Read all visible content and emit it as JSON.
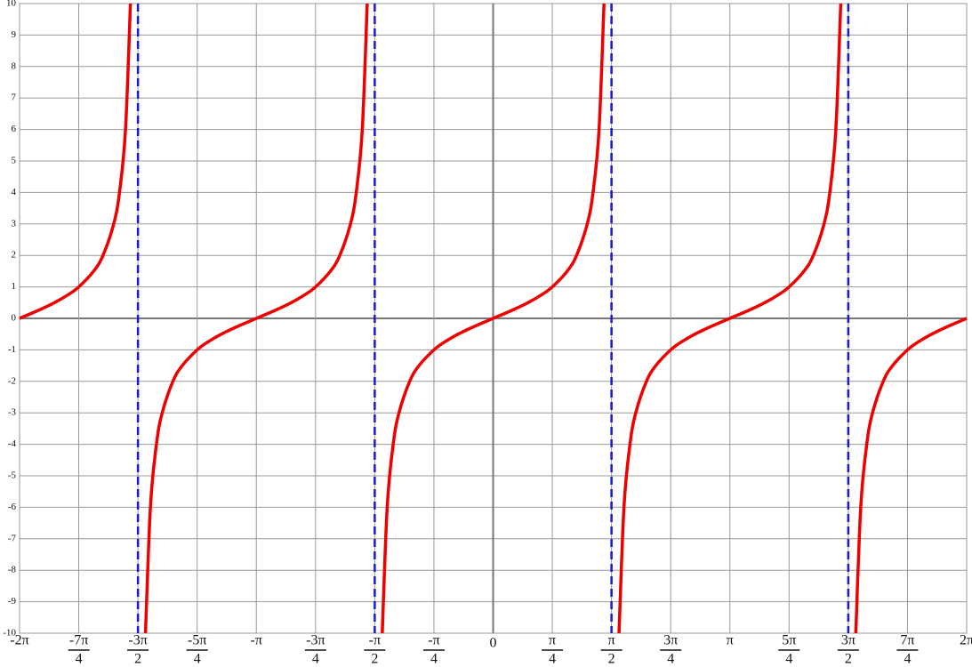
{
  "chart_data": {
    "type": "line",
    "xlim": [
      -6.2832,
      6.2832
    ],
    "ylim": [
      -10,
      10
    ],
    "grid": true,
    "yticks": [
      -10,
      -9,
      -8,
      -7,
      -6,
      -5,
      -4,
      -3,
      -2,
      -1,
      0,
      1,
      2,
      3,
      4,
      5,
      6,
      7,
      8,
      9,
      10
    ],
    "xticks": [
      {
        "value": -6.2832,
        "label": "-2π"
      },
      {
        "value": -5.4978,
        "label": [
          "-7π",
          "4"
        ]
      },
      {
        "value": -4.7124,
        "label": [
          "-3π",
          "2"
        ]
      },
      {
        "value": -3.927,
        "label": [
          "-5π",
          "4"
        ]
      },
      {
        "value": -3.1416,
        "label": "-π"
      },
      {
        "value": -2.3562,
        "label": [
          "-3π",
          "4"
        ]
      },
      {
        "value": -1.5708,
        "label": [
          "-π",
          "2"
        ]
      },
      {
        "value": -0.7854,
        "label": [
          "-π",
          "4"
        ]
      },
      0,
      {
        "value": 0.7854,
        "label": [
          "π",
          "4"
        ]
      },
      {
        "value": 1.5708,
        "label": [
          "π",
          "2"
        ]
      },
      {
        "value": 2.3562,
        "label": [
          "3π",
          "4"
        ]
      },
      {
        "value": 3.1416,
        "label": "π"
      },
      {
        "value": 3.927,
        "label": [
          "5π",
          "4"
        ]
      },
      {
        "value": 4.7124,
        "label": [
          "3π",
          "2"
        ]
      },
      {
        "value": 5.4978,
        "label": [
          "7π",
          "4"
        ]
      },
      {
        "value": 6.2832,
        "label": "2π"
      }
    ],
    "asymptotes": {
      "color": "#1a1acc",
      "x": [
        -4.7124,
        -1.5708,
        1.5708,
        4.7124
      ]
    },
    "series": [
      {
        "color": "#ee0000",
        "x": [
          -6.2832,
          -6.0382,
          -5.8196,
          -5.6397,
          -5.4978,
          -5.3004,
          -5.1761,
          -5.0342,
          -4.9574,
          -4.8776,
          -4.8121,
          null,
          -4.6127,
          -4.5472,
          -4.4674,
          -4.3906,
          -4.2487,
          -4.1244,
          -3.927,
          -3.7851,
          -3.6052,
          -3.3866,
          -3.1416,
          -2.8966,
          -2.678,
          -2.4981,
          -2.3562,
          -2.1588,
          -2.0345,
          -1.8926,
          -1.8158,
          -1.736,
          -1.6705,
          null,
          -1.4711,
          -1.4056,
          -1.3258,
          -1.249,
          -1.1071,
          -0.9828,
          -0.7854,
          -0.6435,
          -0.4636,
          -0.245,
          0,
          0.245,
          0.4636,
          0.6435,
          0.7854,
          0.9828,
          1.1071,
          1.249,
          1.3258,
          1.4056,
          1.4711,
          null,
          1.6705,
          1.736,
          1.8158,
          1.8926,
          2.0345,
          2.1588,
          2.3562,
          2.4981,
          2.678,
          2.8966,
          3.1416,
          3.3866,
          3.6052,
          3.7851,
          3.927,
          4.1244,
          4.2487,
          4.3906,
          4.4674,
          4.5472,
          4.6127,
          null,
          4.8121,
          4.8776,
          4.9574,
          5.0342,
          5.1761,
          5.3004,
          5.4978,
          5.6397,
          5.8196,
          6.0382,
          6.2832
        ],
        "values": [
          0,
          0.25,
          0.5,
          0.75,
          1,
          1.5,
          2,
          3,
          4,
          6,
          10,
          null,
          -10,
          -6,
          -4,
          -3,
          -2,
          -1.5,
          -1,
          -0.75,
          -0.5,
          -0.25,
          0,
          0.25,
          0.5,
          0.75,
          1,
          1.5,
          2,
          3,
          4,
          6,
          10,
          null,
          -10,
          -6,
          -4,
          -3,
          -2,
          -1.5,
          -1,
          -0.75,
          -0.5,
          -0.25,
          0,
          0.25,
          0.5,
          0.75,
          1,
          1.5,
          2,
          3,
          4,
          6,
          10,
          null,
          -10,
          -6,
          -4,
          -3,
          -2,
          -1.5,
          -1,
          -0.75,
          -0.5,
          -0.25,
          0,
          0.25,
          0.5,
          0.75,
          1,
          1.5,
          2,
          3,
          4,
          6,
          10,
          null,
          -10,
          -6,
          -4,
          -3,
          -2,
          -1.5,
          -1,
          -0.75,
          -0.5,
          -0.25,
          0
        ]
      }
    ]
  }
}
